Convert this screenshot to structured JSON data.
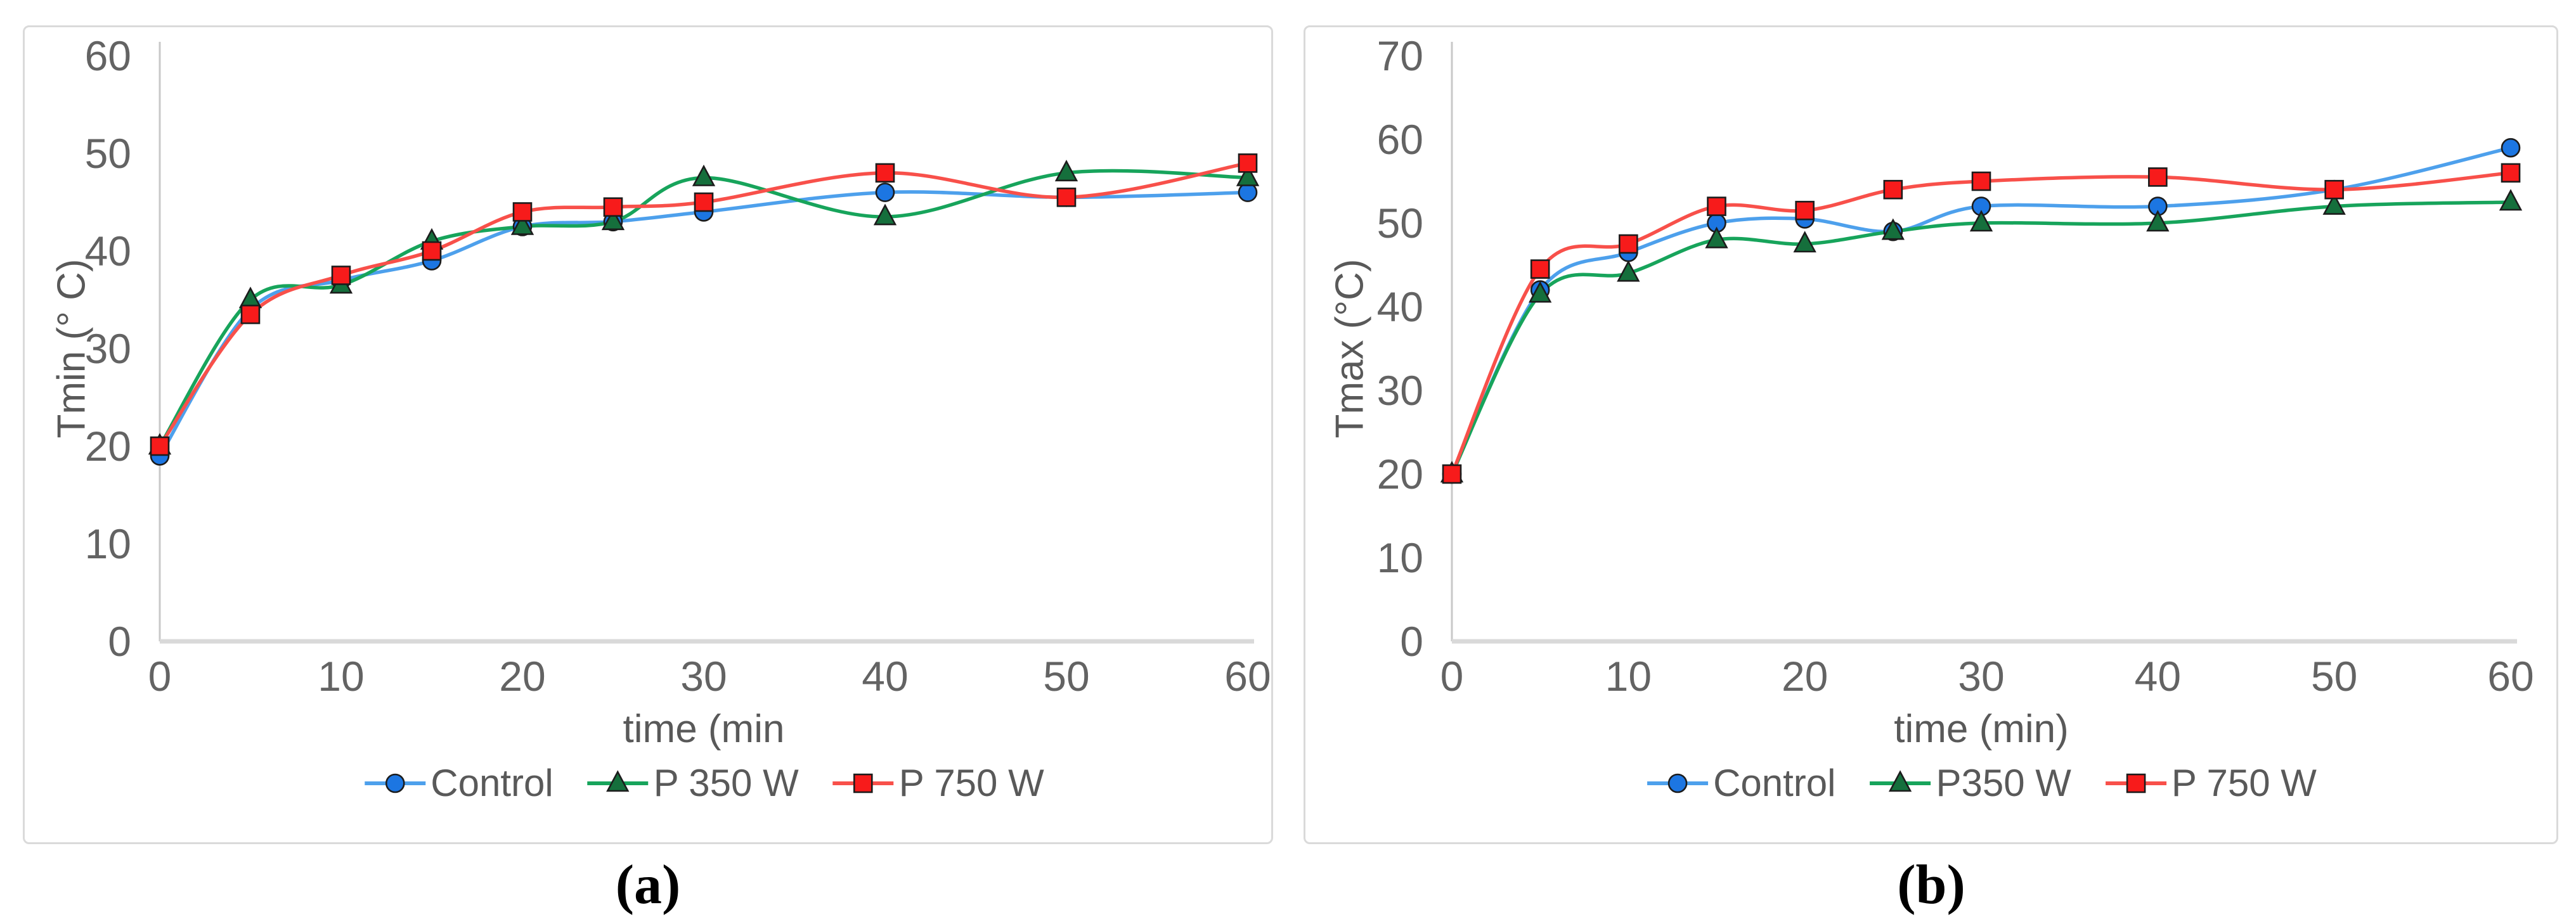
{
  "figure": {
    "panels": [
      {
        "caption": "(a)"
      },
      {
        "caption": "(b)"
      }
    ]
  },
  "styles": {
    "tick_text_color": "#636363",
    "axis_title_color": "#595959",
    "y_axis_line_color": "#c9c9c9",
    "x_baseline_color": "#d9d9d9",
    "panel_border_color": "#dadada",
    "marker_outline_color": "#1c1c1c",
    "control_line_color": "#4DA0EC",
    "control_marker_color": "#1C76E2",
    "p350_line_color": "#17A45B",
    "p350_marker_color": "#156F3C",
    "p750_line_color": "#F8504A",
    "p750_marker_color": "#F71B1B"
  },
  "chart_data": [
    {
      "type": "line",
      "title": "",
      "xlabel": "time (min",
      "ylabel": "Tmin (° C)",
      "x": [
        0,
        5,
        10,
        15,
        20,
        25,
        30,
        40,
        50,
        60
      ],
      "xlim": [
        0,
        60
      ],
      "ylim": [
        0,
        60
      ],
      "xticks": [
        0,
        10,
        20,
        30,
        40,
        50,
        60
      ],
      "yticks": [
        0,
        10,
        20,
        30,
        40,
        50,
        60
      ],
      "grid": false,
      "smooth": true,
      "legend_position": "bottom",
      "series": [
        {
          "name": "Control",
          "marker": "circle",
          "line_color": "#4DA0EC",
          "marker_color": "#1C76E2",
          "values": [
            19,
            34,
            37,
            39,
            42.5,
            43,
            44,
            46,
            45.5,
            46
          ]
        },
        {
          "name": "P 350 W",
          "marker": "triangle",
          "line_color": "#17A45B",
          "marker_color": "#156F3C",
          "values": [
            20,
            35,
            36.5,
            41,
            42.5,
            43,
            47.5,
            43.5,
            48,
            47.5
          ]
        },
        {
          "name": "P 750 W",
          "marker": "square",
          "line_color": "#F8504A",
          "marker_color": "#F71B1B",
          "values": [
            20,
            33.5,
            37.5,
            40,
            44,
            44.5,
            45,
            48,
            45.5,
            49
          ]
        }
      ]
    },
    {
      "type": "line",
      "title": "",
      "xlabel": "time (min)",
      "ylabel": "Tmax (°C)",
      "x": [
        0,
        5,
        10,
        15,
        20,
        25,
        30,
        40,
        50,
        60
      ],
      "xlim": [
        0,
        60
      ],
      "ylim": [
        0,
        70
      ],
      "xticks": [
        0,
        10,
        20,
        30,
        40,
        50,
        60
      ],
      "yticks": [
        0,
        10,
        20,
        30,
        40,
        50,
        60,
        70
      ],
      "grid": false,
      "smooth": true,
      "legend_position": "bottom",
      "series": [
        {
          "name": "Control",
          "marker": "circle",
          "line_color": "#4DA0EC",
          "marker_color": "#1C76E2",
          "values": [
            20,
            42,
            46.5,
            50,
            50.5,
            49,
            52,
            52,
            54,
            59
          ]
        },
        {
          "name": "P350 W",
          "marker": "triangle",
          "line_color": "#17A45B",
          "marker_color": "#156F3C",
          "values": [
            20,
            41.5,
            44,
            48,
            47.5,
            49,
            50,
            50,
            52,
            52.5
          ]
        },
        {
          "name": "P 750 W",
          "marker": "square",
          "line_color": "#F8504A",
          "marker_color": "#F71B1B",
          "values": [
            20,
            44.5,
            47.5,
            52,
            51.5,
            54,
            55,
            55.5,
            54,
            56
          ]
        }
      ]
    }
  ]
}
